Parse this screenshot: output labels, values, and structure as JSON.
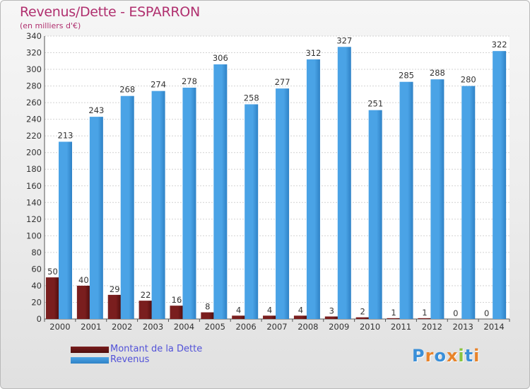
{
  "title": "Revenus/Dette - ESPARRON",
  "subtitle": "(en milliers d'€)",
  "logo": {
    "letters": [
      {
        "ch": "P",
        "color": "#3a8fd8"
      },
      {
        "ch": "r",
        "color": "#e8832a"
      },
      {
        "ch": "o",
        "color": "#3a8fd8"
      },
      {
        "ch": "x",
        "color": "#e8832a"
      },
      {
        "ch": "i",
        "color": "#8ac43f"
      },
      {
        "ch": "t",
        "color": "#3a8fd8"
      },
      {
        "ch": "i",
        "color": "#e8832a"
      }
    ]
  },
  "colors": {
    "revenus": "#4aa3e6",
    "revenus_dark": "#2f82c6",
    "dette": "#7a1e1e",
    "dette_dark": "#4e0d0d",
    "title": "#b0306f"
  },
  "chart_data": {
    "type": "bar",
    "categories": [
      "2000",
      "2001",
      "2002",
      "2003",
      "2004",
      "2005",
      "2006",
      "2007",
      "2008",
      "2009",
      "2010",
      "2011",
      "2012",
      "2013",
      "2014"
    ],
    "series": [
      {
        "name": "Montant de la Dette",
        "values": [
          50,
          40,
          29,
          22,
          16,
          8,
          4,
          4,
          4,
          3,
          2,
          1,
          1,
          0,
          0
        ]
      },
      {
        "name": "Revenus",
        "values": [
          213,
          243,
          268,
          274,
          278,
          306,
          258,
          277,
          312,
          327,
          251,
          285,
          288,
          280,
          322
        ]
      }
    ],
    "title": "Revenus/Dette - ESPARRON",
    "ylabel": "(en milliers d'€)",
    "ylim": [
      0,
      340
    ],
    "ytick_step": 20,
    "grid": true,
    "legend_position": "bottom-left"
  }
}
